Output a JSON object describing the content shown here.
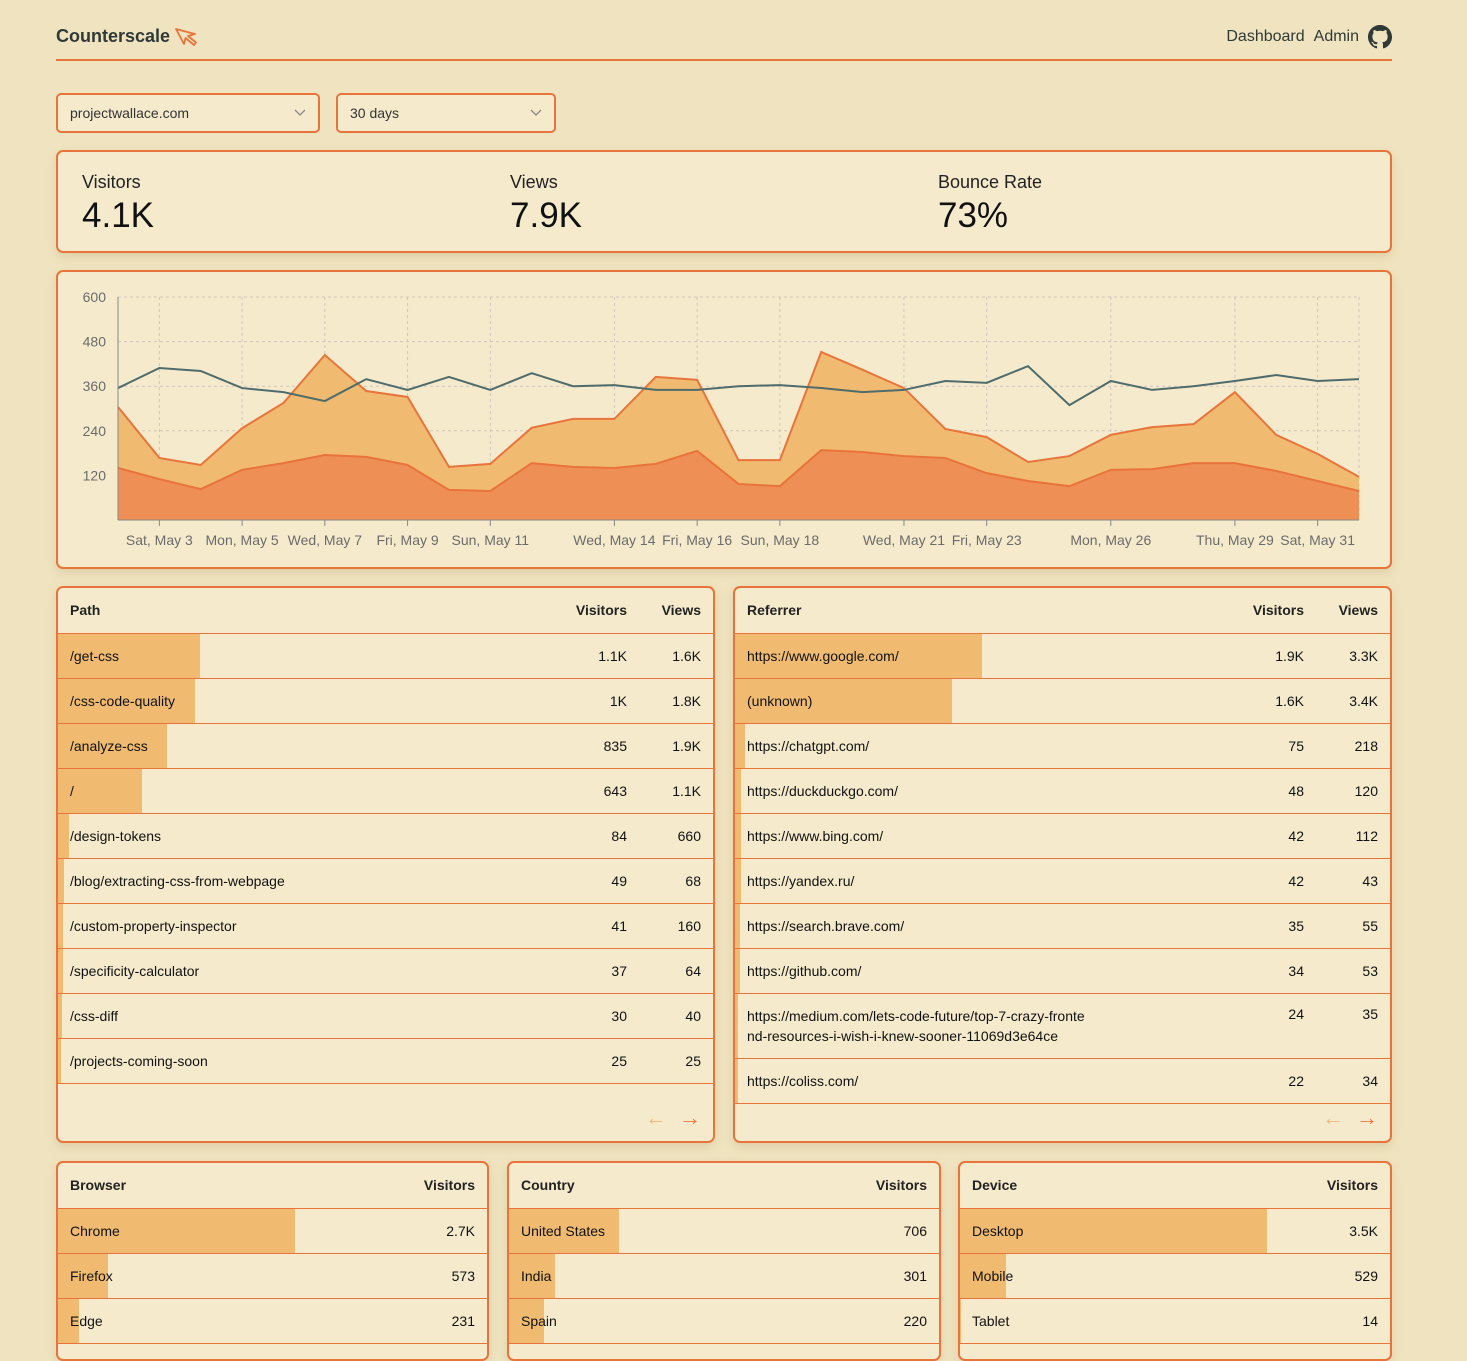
{
  "header": {
    "brand": "Counterscale",
    "nav": [
      "Dashboard",
      "Admin"
    ]
  },
  "filters": {
    "site": "projectwallace.com",
    "range": "30 days"
  },
  "stats": [
    {
      "label": "Visitors",
      "value": "4.1K"
    },
    {
      "label": "Views",
      "value": "7.9K"
    },
    {
      "label": "Bounce Rate",
      "value": "73%"
    }
  ],
  "colors": {
    "accent": "#e8743b",
    "bar": "#f0bb70",
    "views_fill": "#f0bb70",
    "visitors_fill": "#ee8f55",
    "bounce_line": "#4f6b6b",
    "background": "#f0e4c0",
    "card": "#f5ebcc"
  },
  "chart_data": {
    "type": "area",
    "ylim": [
      0,
      600
    ],
    "yticks": [
      120,
      240,
      360,
      480,
      600
    ],
    "grid": true,
    "x": [
      "May 2",
      "May 3",
      "May 4",
      "May 5",
      "May 6",
      "May 7",
      "May 8",
      "May 9",
      "May 10",
      "May 11",
      "May 12",
      "May 13",
      "May 14",
      "May 15",
      "May 16",
      "May 17",
      "May 18",
      "May 19",
      "May 20",
      "May 21",
      "May 22",
      "May 23",
      "May 24",
      "May 25",
      "May 26",
      "May 27",
      "May 28",
      "May 29",
      "May 30",
      "May 31",
      "Jun 1"
    ],
    "xtick_labels": [
      {
        "i": 1,
        "label": "Sat, May 3"
      },
      {
        "i": 3,
        "label": "Mon, May 5"
      },
      {
        "i": 5,
        "label": "Wed, May 7"
      },
      {
        "i": 7,
        "label": "Fri, May 9"
      },
      {
        "i": 9,
        "label": "Sun, May 11"
      },
      {
        "i": 12,
        "label": "Wed, May 14"
      },
      {
        "i": 14,
        "label": "Fri, May 16"
      },
      {
        "i": 16,
        "label": "Sun, May 18"
      },
      {
        "i": 19,
        "label": "Wed, May 21"
      },
      {
        "i": 21,
        "label": "Fri, May 23"
      },
      {
        "i": 24,
        "label": "Mon, May 26"
      },
      {
        "i": 27,
        "label": "Thu, May 29"
      },
      {
        "i": 29,
        "label": "Sat, May 31"
      }
    ],
    "series": [
      {
        "key": "views",
        "values": [
          304,
          167,
          148,
          247,
          315,
          444,
          347,
          331,
          143,
          151,
          248,
          272,
          272,
          385,
          377,
          161,
          161,
          452,
          404,
          355,
          245,
          223,
          156,
          172,
          229,
          250,
          258,
          344,
          229,
          178,
          116
        ]
      },
      {
        "key": "visitors",
        "values": [
          140,
          110,
          83,
          135,
          153,
          175,
          170,
          148,
          81,
          78,
          153,
          143,
          140,
          151,
          186,
          97,
          91,
          188,
          183,
          172,
          167,
          126,
          105,
          91,
          135,
          137,
          153,
          153,
          132,
          105,
          78
        ]
      },
      {
        "key": "bounce",
        "values": [
          355,
          409,
          401,
          355,
          344,
          320,
          379,
          350,
          385,
          350,
          395,
          360,
          363,
          350,
          350,
          360,
          363,
          355,
          344,
          350,
          374,
          369,
          414,
          309,
          374,
          350,
          360,
          374,
          390,
          374,
          379
        ]
      }
    ]
  },
  "paths": {
    "headers": [
      "Path",
      "Visitors",
      "Views"
    ],
    "rows": [
      {
        "label": "/get-css",
        "visitors": "1.1K",
        "views": "1.6K",
        "pct": 28
      },
      {
        "label": "/css-code-quality",
        "visitors": "1K",
        "views": "1.8K",
        "pct": 27
      },
      {
        "label": "/analyze-css",
        "visitors": "835",
        "views": "1.9K",
        "pct": 21.5
      },
      {
        "label": "/",
        "visitors": "643",
        "views": "1.1K",
        "pct": 16.6
      },
      {
        "label": "/design-tokens",
        "visitors": "84",
        "views": "660",
        "pct": 2.1
      },
      {
        "label": "/blog/extracting-css-from-webpage",
        "visitors": "49",
        "views": "68",
        "pct": 1.2
      },
      {
        "label": "/custom-property-inspector",
        "visitors": "41",
        "views": "160",
        "pct": 1
      },
      {
        "label": "/specificity-calculator",
        "visitors": "37",
        "views": "64",
        "pct": 0.9
      },
      {
        "label": "/css-diff",
        "visitors": "30",
        "views": "40",
        "pct": 0.8
      },
      {
        "label": "/projects-coming-soon",
        "visitors": "25",
        "views": "25",
        "pct": 0.6
      }
    ]
  },
  "referrers": {
    "headers": [
      "Referrer",
      "Visitors",
      "Views"
    ],
    "rows": [
      {
        "label": "https://www.google.com/",
        "visitors": "1.9K",
        "views": "3.3K",
        "pct": 48.8
      },
      {
        "label": "(unknown)",
        "visitors": "1.6K",
        "views": "3.4K",
        "pct": 42.8
      },
      {
        "label": "https://chatgpt.com/",
        "visitors": "75",
        "views": "218",
        "pct": 2
      },
      {
        "label": "https://duckduckgo.com/",
        "visitors": "48",
        "views": "120",
        "pct": 1.2
      },
      {
        "label": "https://www.bing.com/",
        "visitors": "42",
        "views": "112",
        "pct": 1.1
      },
      {
        "label": "https://yandex.ru/",
        "visitors": "42",
        "views": "43",
        "pct": 1.1
      },
      {
        "label": "https://search.brave.com/",
        "visitors": "35",
        "views": "55",
        "pct": 0.9
      },
      {
        "label": "https://github.com/",
        "visitors": "34",
        "views": "53",
        "pct": 0.9
      },
      {
        "label": "https://medium.com/lets-code-future/top-7-crazy-frontend-resources-i-wish-i-knew-sooner-11069d3e64ce",
        "visitors": "24",
        "views": "35",
        "pct": 0.6
      },
      {
        "label": "https://coliss.com/",
        "visitors": "22",
        "views": "34",
        "pct": 0.6
      }
    ]
  },
  "browsers": {
    "headers": [
      "Browser",
      "Visitors"
    ],
    "rows": [
      {
        "label": "Chrome",
        "visitors": "2.7K",
        "pct": 67
      },
      {
        "label": "Firefox",
        "visitors": "573",
        "pct": 14
      },
      {
        "label": "Edge",
        "visitors": "231",
        "pct": 5.8
      }
    ]
  },
  "countries": {
    "headers": [
      "Country",
      "Visitors"
    ],
    "rows": [
      {
        "label": "United States",
        "visitors": "706",
        "pct": 31
      },
      {
        "label": "India",
        "visitors": "301",
        "pct": 13
      },
      {
        "label": "Spain",
        "visitors": "220",
        "pct": 10
      }
    ]
  },
  "devices": {
    "headers": [
      "Device",
      "Visitors"
    ],
    "rows": [
      {
        "label": "Desktop",
        "visitors": "3.5K",
        "pct": 86.5
      },
      {
        "label": "Mobile",
        "visitors": "529",
        "pct": 13
      },
      {
        "label": "Tablet",
        "visitors": "14",
        "pct": 0.3
      }
    ]
  },
  "pager": {
    "prev": "←",
    "next": "→"
  }
}
